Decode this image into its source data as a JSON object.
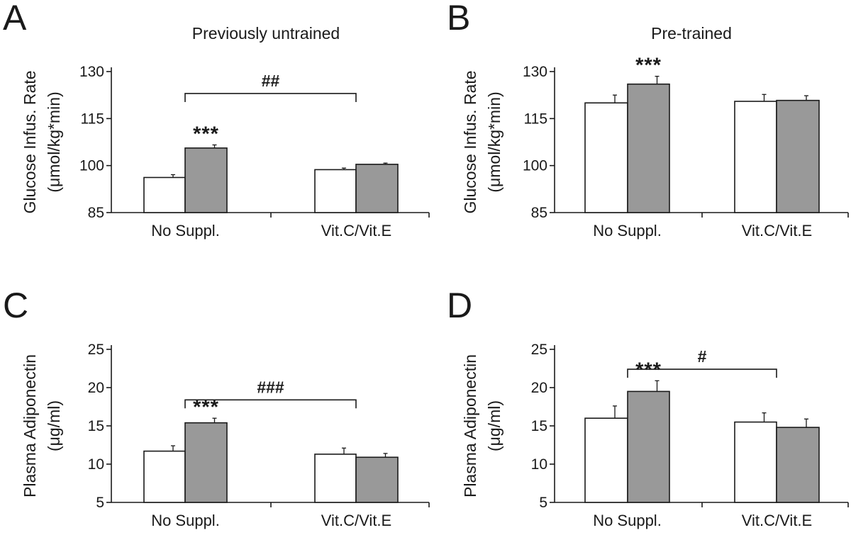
{
  "chart_data": [
    {
      "panel": "A",
      "type": "bar",
      "title": "Previously untrained",
      "ylabel": [
        "Glucose Infus. Rate",
        "(μmol/kg*min)"
      ],
      "ylim": [
        85,
        130
      ],
      "yticks": [
        85,
        100,
        115,
        130
      ],
      "categories": [
        "No Suppl.",
        "Vit.C/Vit.E"
      ],
      "bar_colors": [
        "#ffffff",
        "#999999"
      ],
      "values": [
        [
          96.2,
          105.6
        ],
        [
          98.7,
          100.4
        ]
      ],
      "errors": [
        [
          0.9,
          1.0
        ],
        [
          0.5,
          0.4
        ]
      ],
      "annotations": [
        {
          "text": "***",
          "category": 0,
          "bar": 1
        }
      ],
      "comparison": {
        "text": "##",
        "from": 0,
        "to": 1,
        "level": 123
      }
    },
    {
      "panel": "B",
      "type": "bar",
      "title": "Pre-trained",
      "ylabel": [
        "Glucose Infus. Rate",
        "(μmol/kg*min)"
      ],
      "ylim": [
        85,
        130
      ],
      "yticks": [
        85,
        100,
        115,
        130
      ],
      "categories": [
        "No Suppl.",
        "Vit.C/Vit.E"
      ],
      "bar_colors": [
        "#ffffff",
        "#999999"
      ],
      "values": [
        [
          120,
          126
        ],
        [
          120.5,
          120.8
        ]
      ],
      "errors": [
        [
          2.5,
          2.5
        ],
        [
          2.2,
          1.5
        ]
      ],
      "annotations": [
        {
          "text": "***",
          "category": 0,
          "bar": 1
        }
      ],
      "comparison": null
    },
    {
      "panel": "C",
      "type": "bar",
      "title": "",
      "ylabel": [
        "Plasma Adiponectin",
        "(μg/ml)"
      ],
      "ylim": [
        5,
        25
      ],
      "yticks": [
        5,
        10,
        15,
        20,
        25
      ],
      "categories": [
        "No Suppl.",
        "Vit.C/Vit.E"
      ],
      "bar_colors": [
        "#ffffff",
        "#999999"
      ],
      "values": [
        [
          11.7,
          15.4
        ],
        [
          11.3,
          10.9
        ]
      ],
      "errors": [
        [
          0.7,
          0.6
        ],
        [
          0.8,
          0.5
        ]
      ],
      "annotations": [
        {
          "text": "***",
          "category": 0,
          "bar": 1
        }
      ],
      "comparison": {
        "text": "###",
        "from": 0,
        "to": 1,
        "level": 18.4
      }
    },
    {
      "panel": "D",
      "type": "bar",
      "title": "",
      "ylabel": [
        "Plasma Adiponectin",
        "(μg/ml)"
      ],
      "ylim": [
        5,
        25
      ],
      "yticks": [
        5,
        10,
        15,
        20,
        25
      ],
      "categories": [
        "No Suppl.",
        "Vit.C/Vit.E"
      ],
      "bar_colors": [
        "#ffffff",
        "#999999"
      ],
      "values": [
        [
          16,
          19.5
        ],
        [
          15.5,
          14.8
        ]
      ],
      "errors": [
        [
          1.6,
          1.4
        ],
        [
          1.2,
          1.1
        ]
      ],
      "annotations": [
        {
          "text": "***",
          "category": 0,
          "bar": 1
        }
      ],
      "comparison": {
        "text": "#",
        "from": 0,
        "to": 1,
        "level": 22.4
      }
    }
  ]
}
